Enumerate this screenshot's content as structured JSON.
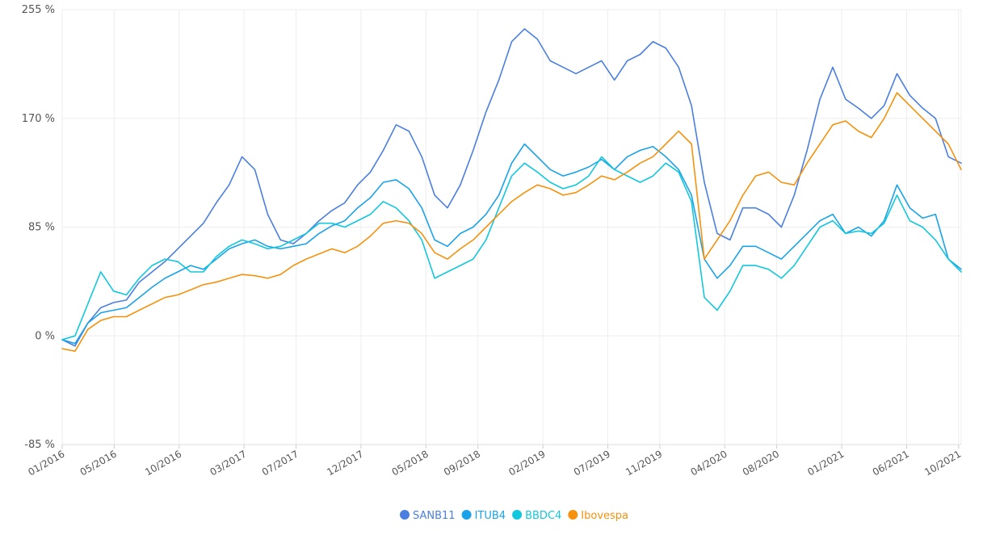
{
  "chart_data": {
    "type": "line",
    "title": "",
    "xlabel": "",
    "ylabel": "",
    "y_ticks": [
      "-85 %",
      "0 %",
      "85 %",
      "170 %",
      "255 %"
    ],
    "y_tick_values": [
      -85,
      0,
      85,
      170,
      255
    ],
    "ylim": [
      -85,
      255
    ],
    "x_ticks": [
      "01/2016",
      "05/2016",
      "10/2016",
      "03/2017",
      "07/2017",
      "12/2017",
      "05/2018",
      "09/2018",
      "02/2019",
      "07/2019",
      "11/2019",
      "04/2020",
      "08/2020",
      "01/2021",
      "06/2021",
      "10/2021"
    ],
    "x_tick_index": [
      0,
      4,
      9,
      14,
      18,
      23,
      28,
      32,
      37,
      42,
      46,
      51,
      55,
      60,
      65,
      69
    ],
    "xlim_index": [
      0,
      69.2
    ],
    "grid": true,
    "legend_position": "bottom-center",
    "series": [
      {
        "name": "SANB11",
        "color": "#4a7fe0",
        "values": [
          -3,
          -8,
          10,
          22,
          26,
          28,
          42,
          50,
          58,
          68,
          78,
          88,
          104,
          118,
          140,
          130,
          95,
          75,
          72,
          80,
          90,
          98,
          104,
          118,
          128,
          145,
          165,
          160,
          140,
          110,
          100,
          118,
          145,
          175,
          200,
          230,
          240,
          232,
          215,
          210,
          205,
          210,
          215,
          200,
          215,
          220,
          230,
          225,
          210,
          180,
          120,
          80,
          75,
          100,
          100,
          95,
          85,
          110,
          145,
          185,
          210,
          185,
          178,
          170,
          180,
          205,
          188,
          178,
          170,
          140,
          135
        ]
      },
      {
        "name": "ITUB4",
        "color": "#1aa3e8",
        "values": [
          -3,
          -6,
          10,
          18,
          20,
          22,
          30,
          38,
          45,
          50,
          55,
          52,
          60,
          68,
          72,
          75,
          70,
          68,
          70,
          72,
          80,
          86,
          90,
          100,
          108,
          120,
          122,
          115,
          100,
          75,
          70,
          80,
          85,
          95,
          110,
          135,
          150,
          140,
          130,
          125,
          128,
          132,
          138,
          130,
          140,
          145,
          148,
          140,
          130,
          110,
          60,
          45,
          55,
          70,
          70,
          65,
          60,
          70,
          80,
          90,
          95,
          80,
          85,
          78,
          90,
          118,
          100,
          92,
          95,
          60,
          52
        ]
      },
      {
        "name": "BBDC4",
        "color": "#12c7de",
        "values": [
          -3,
          0,
          25,
          50,
          35,
          32,
          45,
          55,
          60,
          58,
          50,
          50,
          62,
          70,
          75,
          72,
          68,
          70,
          75,
          80,
          88,
          88,
          85,
          90,
          95,
          105,
          100,
          90,
          75,
          45,
          50,
          55,
          60,
          75,
          100,
          125,
          135,
          128,
          120,
          115,
          118,
          125,
          140,
          130,
          125,
          120,
          125,
          135,
          128,
          105,
          30,
          20,
          35,
          55,
          55,
          52,
          45,
          55,
          70,
          85,
          90,
          80,
          82,
          80,
          88,
          110,
          90,
          85,
          75,
          60,
          50
        ]
      },
      {
        "name": "Ibovespa",
        "color": "#f5920e",
        "values": [
          -10,
          -12,
          5,
          12,
          15,
          15,
          20,
          25,
          30,
          32,
          36,
          40,
          42,
          45,
          48,
          47,
          45,
          48,
          55,
          60,
          64,
          68,
          65,
          70,
          78,
          88,
          90,
          88,
          80,
          65,
          60,
          68,
          75,
          85,
          95,
          105,
          112,
          118,
          115,
          110,
          112,
          118,
          125,
          122,
          128,
          135,
          140,
          150,
          160,
          150,
          60,
          75,
          90,
          110,
          125,
          128,
          120,
          118,
          135,
          150,
          165,
          168,
          160,
          155,
          170,
          190,
          180,
          170,
          160,
          150,
          130
        ]
      }
    ]
  }
}
